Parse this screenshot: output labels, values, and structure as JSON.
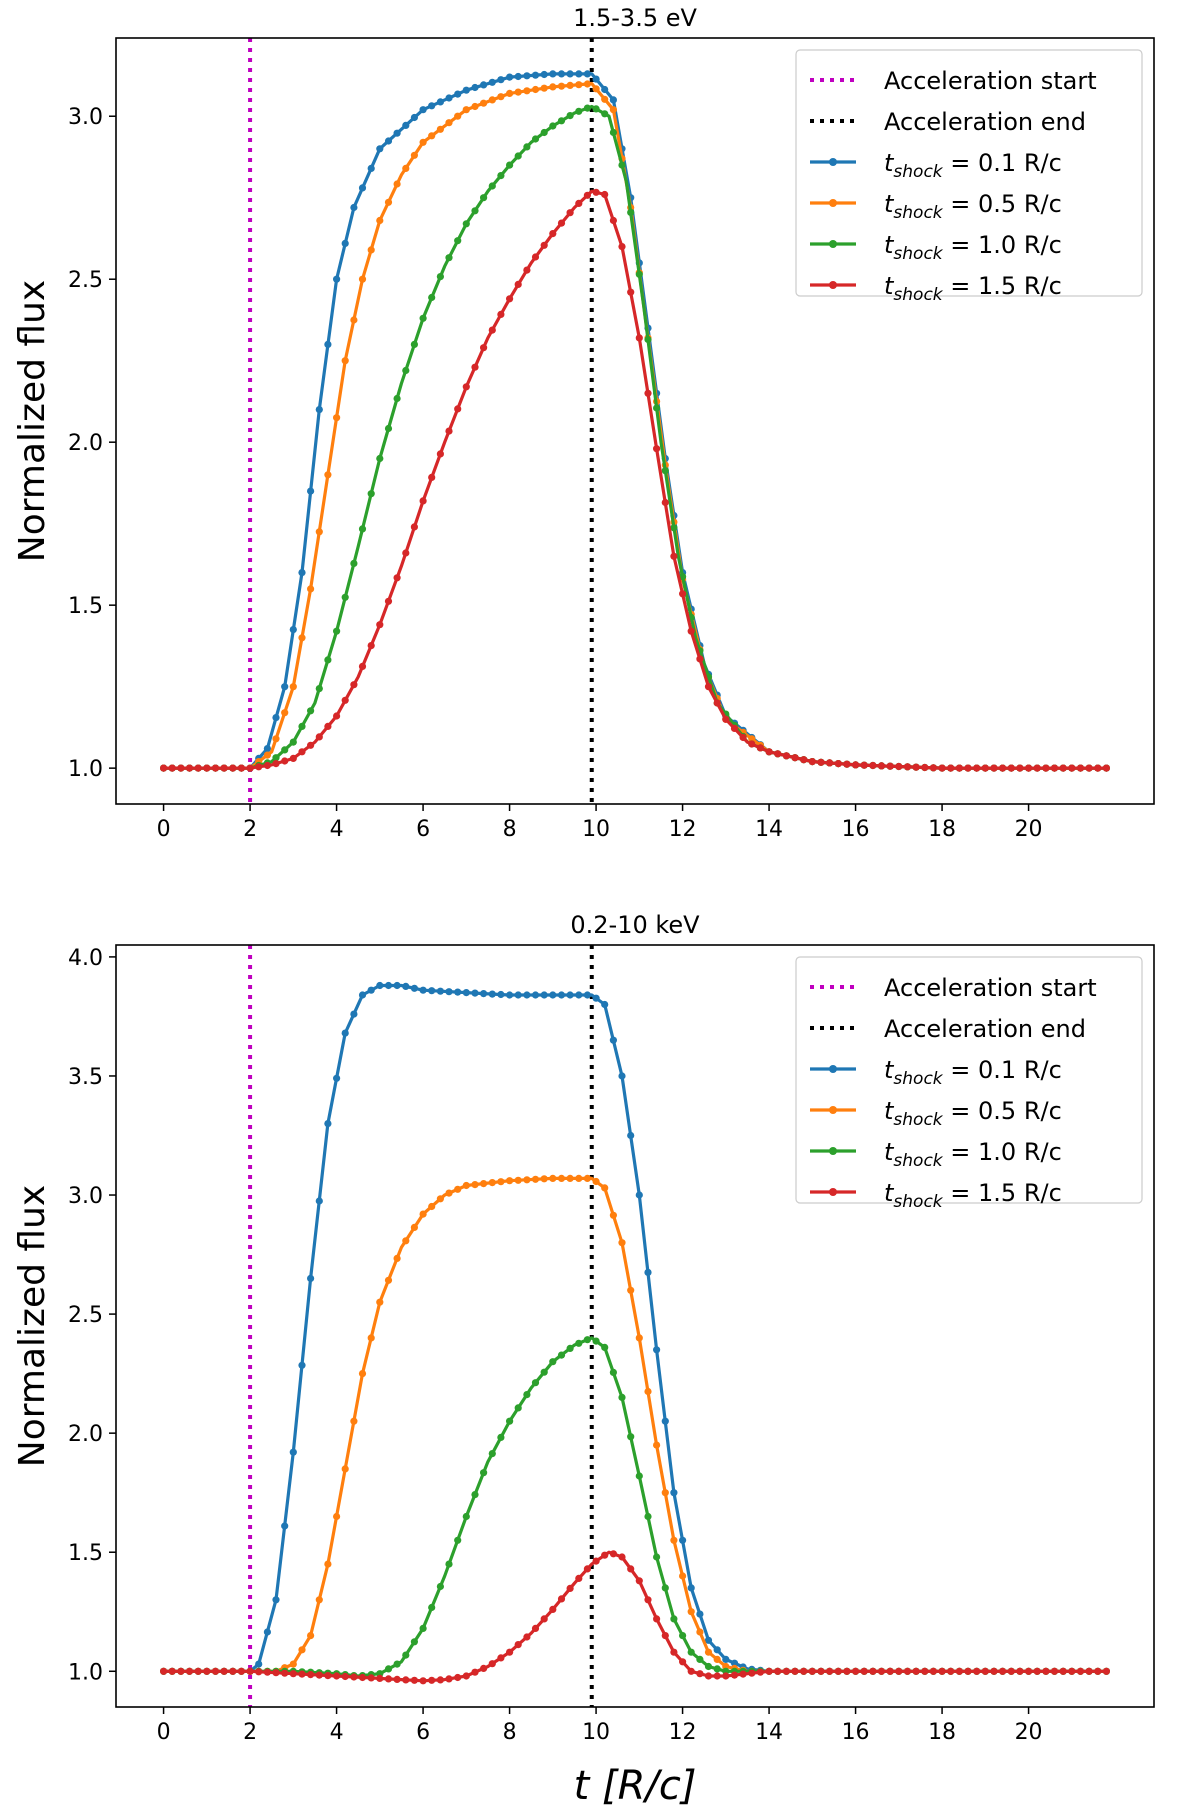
{
  "chart_data": [
    {
      "type": "line",
      "title": "1.5-3.5 eV",
      "xlabel": "",
      "ylabel": "Normalized flux",
      "xlim": [
        -1.1,
        22.9
      ],
      "ylim": [
        0.89,
        3.24
      ],
      "xticks": [
        0,
        2,
        4,
        6,
        8,
        10,
        12,
        14,
        16,
        18,
        20
      ],
      "yticks": [
        1.0,
        1.5,
        2.0,
        2.5,
        3.0
      ],
      "vlines": [
        {
          "x": 2,
          "color": "#bf00bf",
          "label": "Acceleration start"
        },
        {
          "x": 9.9,
          "color": "#000000",
          "label": "Acceleration end"
        }
      ],
      "legend_position": "top-right",
      "series": [
        {
          "name": "t_shock = 0.1 R/c",
          "label_main": "t",
          "label_sub": "shock",
          "label_rest": "= 0.1 R/c",
          "color": "#1f77b4",
          "points": [
            [
              0,
              1.0
            ],
            [
              1,
              1.0
            ],
            [
              2,
              1.0
            ],
            [
              2.4,
              1.06
            ],
            [
              2.8,
              1.25
            ],
            [
              3.2,
              1.6
            ],
            [
              3.6,
              2.1
            ],
            [
              4,
              2.5
            ],
            [
              4.4,
              2.72
            ],
            [
              5,
              2.9
            ],
            [
              6,
              3.02
            ],
            [
              7,
              3.08
            ],
            [
              8,
              3.12
            ],
            [
              9,
              3.13
            ],
            [
              9.9,
              3.13
            ],
            [
              10.4,
              3.05
            ],
            [
              10.8,
              2.75
            ],
            [
              11.2,
              2.35
            ],
            [
              11.6,
              1.95
            ],
            [
              12,
              1.6
            ],
            [
              12.5,
              1.32
            ],
            [
              13,
              1.16
            ],
            [
              14,
              1.05
            ],
            [
              15,
              1.02
            ],
            [
              16,
              1.01
            ],
            [
              18,
              1.0
            ],
            [
              20,
              1.0
            ],
            [
              21.8,
              1.0
            ]
          ]
        },
        {
          "name": "t_shock = 0.5 R/c",
          "label_main": "t",
          "label_sub": "shock",
          "label_rest": "= 0.5 R/c",
          "color": "#ff7f0e",
          "points": [
            [
              0,
              1.0
            ],
            [
              1,
              1.0
            ],
            [
              2,
              1.0
            ],
            [
              2.5,
              1.05
            ],
            [
              3,
              1.25
            ],
            [
              3.4,
              1.55
            ],
            [
              3.8,
              1.9
            ],
            [
              4.2,
              2.25
            ],
            [
              4.6,
              2.5
            ],
            [
              5,
              2.68
            ],
            [
              5.5,
              2.82
            ],
            [
              6,
              2.92
            ],
            [
              7,
              3.02
            ],
            [
              8,
              3.07
            ],
            [
              9,
              3.09
            ],
            [
              9.9,
              3.1
            ],
            [
              10.4,
              3.02
            ],
            [
              10.8,
              2.72
            ],
            [
              11.2,
              2.32
            ],
            [
              11.6,
              1.93
            ],
            [
              12,
              1.58
            ],
            [
              12.5,
              1.31
            ],
            [
              13,
              1.15
            ],
            [
              14,
              1.05
            ],
            [
              15,
              1.02
            ],
            [
              16,
              1.01
            ],
            [
              18,
              1.0
            ],
            [
              20,
              1.0
            ],
            [
              21.8,
              1.0
            ]
          ]
        },
        {
          "name": "t_shock = 1.0 R/c",
          "label_main": "t",
          "label_sub": "shock",
          "label_rest": "= 1.0 R/c",
          "color": "#2ca02c",
          "points": [
            [
              0,
              1.0
            ],
            [
              1,
              1.0
            ],
            [
              2,
              1.0
            ],
            [
              2.5,
              1.02
            ],
            [
              3,
              1.08
            ],
            [
              3.5,
              1.2
            ],
            [
              4,
              1.42
            ],
            [
              4.5,
              1.68
            ],
            [
              5,
              1.95
            ],
            [
              5.5,
              2.18
            ],
            [
              6,
              2.38
            ],
            [
              6.5,
              2.54
            ],
            [
              7,
              2.67
            ],
            [
              7.5,
              2.77
            ],
            [
              8,
              2.85
            ],
            [
              8.5,
              2.92
            ],
            [
              9,
              2.97
            ],
            [
              9.5,
              3.01
            ],
            [
              9.9,
              3.03
            ],
            [
              10.3,
              3.0
            ],
            [
              10.7,
              2.8
            ],
            [
              11.1,
              2.42
            ],
            [
              11.5,
              2.0
            ],
            [
              11.9,
              1.65
            ],
            [
              12.3,
              1.4
            ],
            [
              12.8,
              1.2
            ],
            [
              13.5,
              1.08
            ],
            [
              14,
              1.05
            ],
            [
              15,
              1.02
            ],
            [
              16,
              1.01
            ],
            [
              18,
              1.0
            ],
            [
              20,
              1.0
            ],
            [
              21.8,
              1.0
            ]
          ]
        },
        {
          "name": "t_shock = 1.5 R/c",
          "label_main": "t",
          "label_sub": "shock",
          "label_rest": "= 1.5 R/c",
          "color": "#d62728",
          "points": [
            [
              0,
              1.0
            ],
            [
              1,
              1.0
            ],
            [
              2,
              1.0
            ],
            [
              2.5,
              1.01
            ],
            [
              3,
              1.03
            ],
            [
              3.5,
              1.08
            ],
            [
              4,
              1.16
            ],
            [
              4.5,
              1.28
            ],
            [
              5,
              1.44
            ],
            [
              5.5,
              1.62
            ],
            [
              6,
              1.82
            ],
            [
              6.5,
              2.0
            ],
            [
              7,
              2.17
            ],
            [
              7.5,
              2.32
            ],
            [
              8,
              2.44
            ],
            [
              8.5,
              2.55
            ],
            [
              9,
              2.64
            ],
            [
              9.5,
              2.72
            ],
            [
              9.9,
              2.77
            ],
            [
              10.2,
              2.76
            ],
            [
              10.6,
              2.6
            ],
            [
              11,
              2.32
            ],
            [
              11.4,
              1.98
            ],
            [
              11.8,
              1.65
            ],
            [
              12.2,
              1.42
            ],
            [
              12.6,
              1.25
            ],
            [
              13,
              1.15
            ],
            [
              13.5,
              1.08
            ],
            [
              14,
              1.05
            ],
            [
              15,
              1.02
            ],
            [
              16,
              1.01
            ],
            [
              18,
              1.0
            ],
            [
              20,
              1.0
            ],
            [
              21.8,
              1.0
            ]
          ]
        }
      ]
    },
    {
      "type": "line",
      "title": "0.2-10 keV",
      "xlabel": "t [R/c]",
      "ylabel": "Normalized flux",
      "xlim": [
        -1.1,
        22.9
      ],
      "ylim": [
        0.85,
        4.05
      ],
      "xticks": [
        0,
        2,
        4,
        6,
        8,
        10,
        12,
        14,
        16,
        18,
        20
      ],
      "yticks": [
        1.0,
        1.5,
        2.0,
        2.5,
        3.0,
        3.5,
        4.0
      ],
      "vlines": [
        {
          "x": 2,
          "color": "#bf00bf",
          "label": "Acceleration start"
        },
        {
          "x": 9.9,
          "color": "#000000",
          "label": "Acceleration end"
        }
      ],
      "legend_position": "top-right",
      "series": [
        {
          "name": "t_shock = 0.1 R/c",
          "label_main": "t",
          "label_sub": "shock",
          "label_rest": "= 0.1 R/c",
          "color": "#1f77b4",
          "points": [
            [
              0,
              1.0
            ],
            [
              1,
              1.0
            ],
            [
              2,
              1.0
            ],
            [
              2.2,
              1.03
            ],
            [
              2.6,
              1.3
            ],
            [
              3,
              1.92
            ],
            [
              3.4,
              2.65
            ],
            [
              3.8,
              3.3
            ],
            [
              4.2,
              3.68
            ],
            [
              4.6,
              3.84
            ],
            [
              5,
              3.88
            ],
            [
              5.5,
              3.88
            ],
            [
              6,
              3.86
            ],
            [
              7,
              3.85
            ],
            [
              8,
              3.84
            ],
            [
              9,
              3.84
            ],
            [
              9.9,
              3.84
            ],
            [
              10.2,
              3.8
            ],
            [
              10.6,
              3.5
            ],
            [
              11,
              3.0
            ],
            [
              11.4,
              2.35
            ],
            [
              11.8,
              1.75
            ],
            [
              12.2,
              1.35
            ],
            [
              12.6,
              1.13
            ],
            [
              13,
              1.05
            ],
            [
              13.5,
              1.01
            ],
            [
              14,
              1.0
            ],
            [
              16,
              1.0
            ],
            [
              18,
              1.0
            ],
            [
              20,
              1.0
            ],
            [
              21.8,
              1.0
            ]
          ]
        },
        {
          "name": "t_shock = 0.5 R/c",
          "label_main": "t",
          "label_sub": "shock",
          "label_rest": "= 0.5 R/c",
          "color": "#ff7f0e",
          "points": [
            [
              0,
              1.0
            ],
            [
              1,
              1.0
            ],
            [
              2,
              1.0
            ],
            [
              2.6,
              1.0
            ],
            [
              3,
              1.03
            ],
            [
              3.4,
              1.15
            ],
            [
              3.8,
              1.45
            ],
            [
              4.2,
              1.85
            ],
            [
              4.6,
              2.25
            ],
            [
              5,
              2.55
            ],
            [
              5.5,
              2.78
            ],
            [
              6,
              2.92
            ],
            [
              6.5,
              3.0
            ],
            [
              7,
              3.04
            ],
            [
              8,
              3.06
            ],
            [
              9,
              3.07
            ],
            [
              9.9,
              3.07
            ],
            [
              10.2,
              3.03
            ],
            [
              10.6,
              2.8
            ],
            [
              11,
              2.4
            ],
            [
              11.4,
              1.95
            ],
            [
              11.8,
              1.55
            ],
            [
              12.2,
              1.25
            ],
            [
              12.6,
              1.08
            ],
            [
              13,
              1.02
            ],
            [
              13.5,
              1.0
            ],
            [
              14,
              1.0
            ],
            [
              16,
              1.0
            ],
            [
              18,
              1.0
            ],
            [
              20,
              1.0
            ],
            [
              21.8,
              1.0
            ]
          ]
        },
        {
          "name": "t_shock = 1.0 R/c",
          "label_main": "t",
          "label_sub": "shock",
          "label_rest": "= 1.0 R/c",
          "color": "#2ca02c",
          "points": [
            [
              0,
              1.0
            ],
            [
              1,
              1.0
            ],
            [
              2,
              1.0
            ],
            [
              3,
              1.0
            ],
            [
              4,
              0.99
            ],
            [
              4.5,
              0.98
            ],
            [
              5,
              0.99
            ],
            [
              5.5,
              1.04
            ],
            [
              6,
              1.18
            ],
            [
              6.5,
              1.4
            ],
            [
              7,
              1.65
            ],
            [
              7.5,
              1.88
            ],
            [
              8,
              2.05
            ],
            [
              8.5,
              2.19
            ],
            [
              9,
              2.3
            ],
            [
              9.5,
              2.37
            ],
            [
              9.9,
              2.4
            ],
            [
              10.2,
              2.36
            ],
            [
              10.6,
              2.15
            ],
            [
              11,
              1.82
            ],
            [
              11.4,
              1.48
            ],
            [
              11.8,
              1.22
            ],
            [
              12.2,
              1.08
            ],
            [
              12.6,
              1.02
            ],
            [
              13,
              1.0
            ],
            [
              14,
              1.0
            ],
            [
              16,
              1.0
            ],
            [
              18,
              1.0
            ],
            [
              20,
              1.0
            ],
            [
              21.8,
              1.0
            ]
          ]
        },
        {
          "name": "t_shock = 1.5 R/c",
          "label_main": "t",
          "label_sub": "shock",
          "label_rest": "= 1.5 R/c",
          "color": "#d62728",
          "points": [
            [
              0,
              1.0
            ],
            [
              1,
              1.0
            ],
            [
              2,
              1.0
            ],
            [
              3,
              0.99
            ],
            [
              4,
              0.98
            ],
            [
              5,
              0.97
            ],
            [
              5.5,
              0.965
            ],
            [
              6,
              0.96
            ],
            [
              6.5,
              0.965
            ],
            [
              7,
              0.98
            ],
            [
              7.5,
              1.02
            ],
            [
              8,
              1.08
            ],
            [
              8.5,
              1.16
            ],
            [
              9,
              1.26
            ],
            [
              9.5,
              1.37
            ],
            [
              9.9,
              1.45
            ],
            [
              10.3,
              1.5
            ],
            [
              10.6,
              1.48
            ],
            [
              11,
              1.38
            ],
            [
              11.4,
              1.22
            ],
            [
              11.8,
              1.08
            ],
            [
              12.2,
              1.0
            ],
            [
              12.6,
              0.98
            ],
            [
              13,
              0.98
            ],
            [
              13.5,
              0.99
            ],
            [
              14,
              1.0
            ],
            [
              16,
              1.0
            ],
            [
              18,
              1.0
            ],
            [
              20,
              1.0
            ],
            [
              21.8,
              1.0
            ]
          ]
        }
      ]
    }
  ]
}
